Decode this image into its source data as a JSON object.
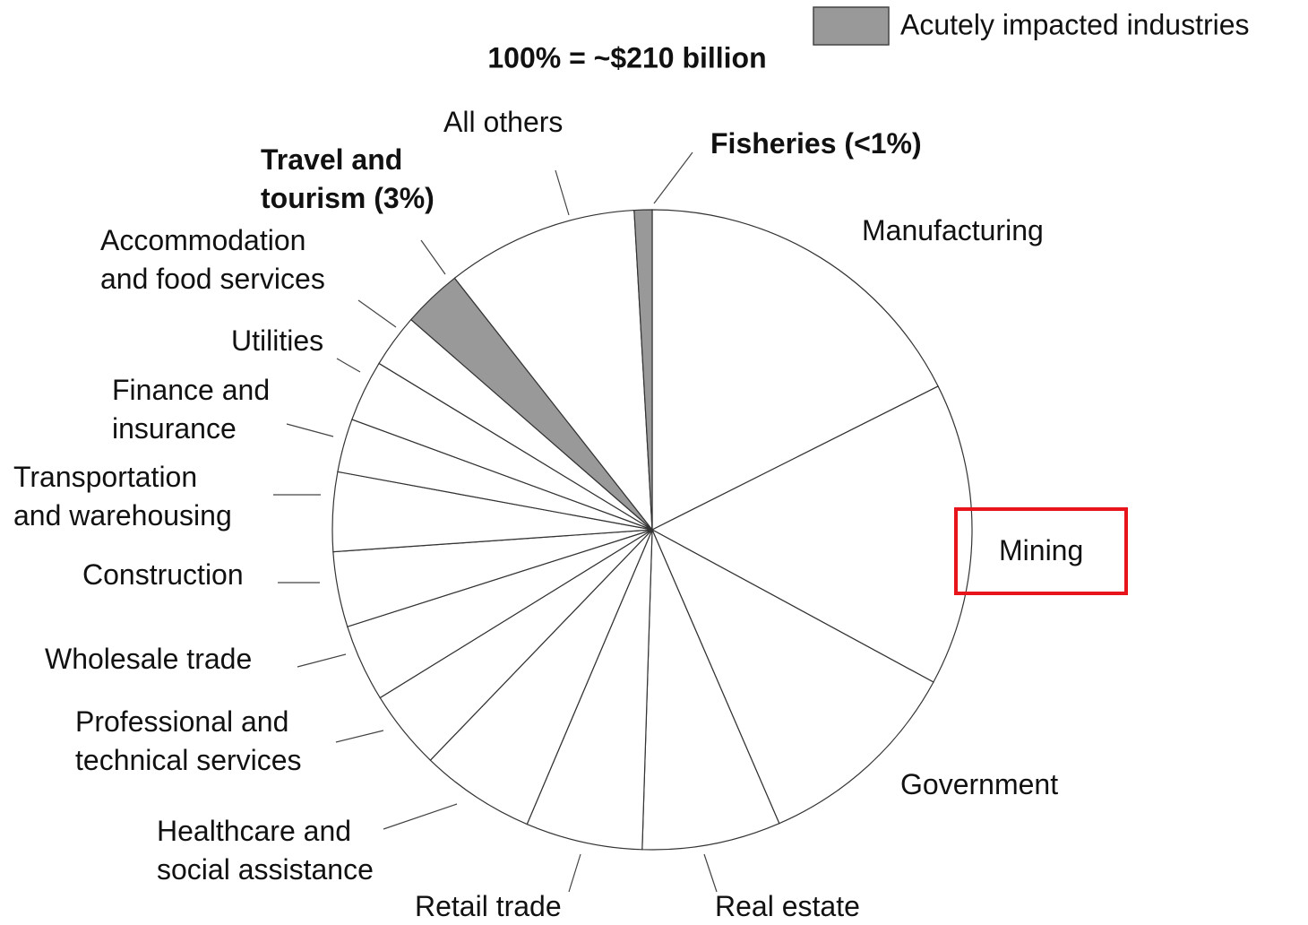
{
  "chart_data": {
    "type": "pie",
    "subtitle": "100% = ~$210 billion",
    "legend": {
      "label": "Acutely impacted industries",
      "color": "#999999"
    },
    "categories": [
      "Manufacturing",
      "Mining",
      "Government",
      "Real estate",
      "Retail trade",
      "Healthcare and\nsocial assistance",
      "Professional and\ntechnical services",
      "Wholesale trade",
      "Construction",
      "Transportation\nand warehousing",
      "Finance and\ninsurance",
      "Utilities",
      "Accommodation\nand food services",
      "Travel and\ntourism (3%)",
      "All others",
      "Fisheries (<1%)"
    ],
    "values": [
      17.6,
      15.3,
      10.6,
      7.0,
      5.9,
      5.8,
      4.0,
      3.9,
      3.8,
      4.0,
      2.7,
      3.1,
      2.7,
      3.0,
      9.7,
      0.9
    ],
    "colors": [
      "#ffffff",
      "#ffffff",
      "#ffffff",
      "#ffffff",
      "#ffffff",
      "#ffffff",
      "#ffffff",
      "#ffffff",
      "#ffffff",
      "#ffffff",
      "#ffffff",
      "#ffffff",
      "#ffffff",
      "#999999",
      "#ffffff",
      "#999999"
    ]
  }
}
